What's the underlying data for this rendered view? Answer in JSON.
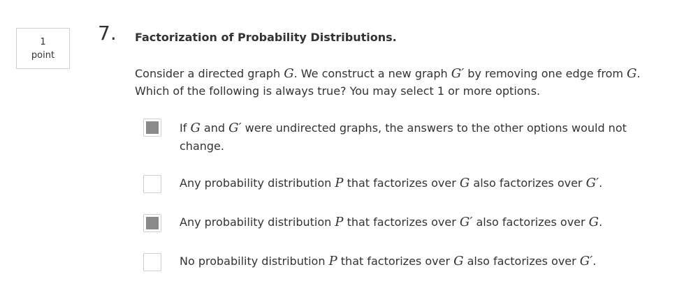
{
  "points": {
    "value": "1",
    "label": "point"
  },
  "question": {
    "number": "7.",
    "title": "Factorization of Probability Distributions.",
    "prompt_1a": "Consider a directed graph ",
    "G": "G",
    "prompt_1b": ". We construct a new graph ",
    "Gp": "G′",
    "prompt_1c": " by removing one edge from ",
    "prompt_1d": ".",
    "prompt_2": "Which of the following is always true? You may select 1 or more options."
  },
  "options": [
    {
      "checked": true,
      "t1": "If ",
      "m1": "G",
      "t2": " and ",
      "m2": "G′",
      "t3": " were undirected graphs, the answers to the other options would not change."
    },
    {
      "checked": false,
      "t1": "Any probability distribution ",
      "m1": "P",
      "t2": " that factorizes over ",
      "m2": "G",
      "t3": " also factorizes over ",
      "m3": "G′",
      "t4": "."
    },
    {
      "checked": true,
      "t1": "Any probability distribution ",
      "m1": "P",
      "t2": " that factorizes over ",
      "m2": "G′",
      "t3": " also factorizes over ",
      "m3": "G",
      "t4": "."
    },
    {
      "checked": false,
      "t1": "No probability distribution ",
      "m1": "P",
      "t2": " that factorizes over ",
      "m2": "G",
      "t3": " also factorizes over ",
      "m3": "G′",
      "t4": "."
    }
  ]
}
